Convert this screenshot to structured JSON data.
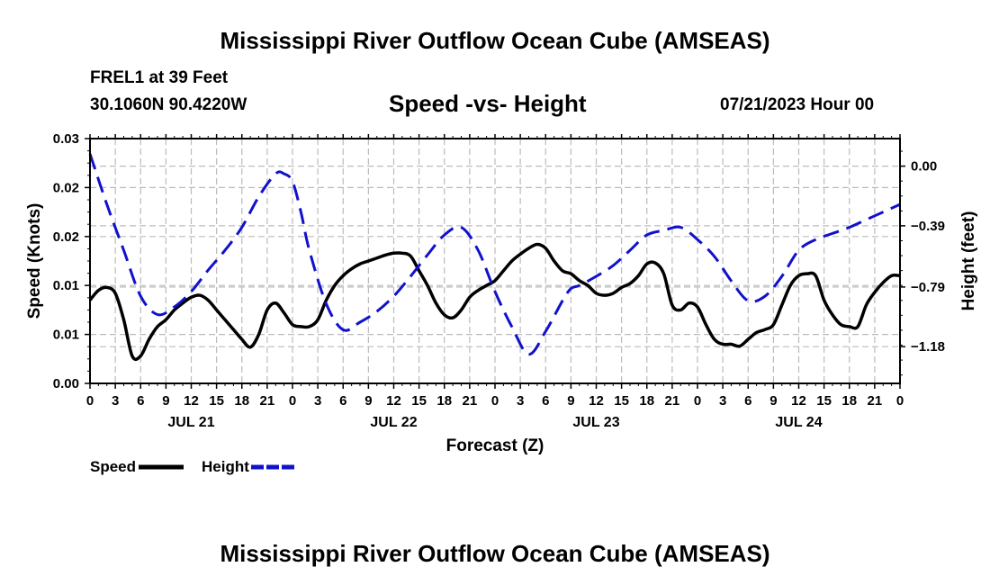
{
  "page": {
    "title_top": "Mississippi River Outflow Ocean Cube (AMSEAS)",
    "title_bottom": "Mississippi River Outflow Ocean Cube (AMSEAS)",
    "station": "FREL1 at 39 Feet",
    "coords": "30.1060N  90.4220W",
    "subtitle": "Speed -vs- Height",
    "run": "07/21/2023 Hour 00"
  },
  "legend": {
    "speed": "Speed",
    "height": "Height"
  },
  "colors": {
    "speed": "#000000",
    "height": "#1111cc",
    "grid": "#bbbbbb"
  },
  "chart_data": {
    "type": "line",
    "xlabel": "Forecast (Z)",
    "ylabel_left": "Speed (Knots)",
    "ylabel_right": "Height (feet)",
    "x_range_hours": [
      0,
      96
    ],
    "y_left_range": [
      0,
      0.025
    ],
    "y_left_ticks": [
      0,
      0.005,
      0.01,
      0.015,
      0.02,
      0.025
    ],
    "y_left_tick_labels": [
      "0.00",
      "0.01",
      "0.01",
      "0.02",
      "0.02",
      "0.03"
    ],
    "y_right_range": [
      -1.42,
      0.18
    ],
    "y_right_ticks": [
      0.0,
      -0.39,
      -0.79,
      -1.18
    ],
    "y_right_tick_labels": [
      "0.00",
      "−0.39",
      "−0.79",
      "−1.18"
    ],
    "x_tick_hours": [
      0,
      3,
      6,
      9,
      12,
      15,
      18,
      21,
      24,
      27,
      30,
      33,
      36,
      39,
      42,
      45,
      48,
      51,
      54,
      57,
      60,
      63,
      66,
      69,
      72,
      75,
      78,
      81,
      84,
      87,
      90,
      93,
      96
    ],
    "x_tick_labels": [
      "0",
      "3",
      "6",
      "9",
      "12",
      "15",
      "18",
      "21",
      "0",
      "3",
      "6",
      "9",
      "12",
      "15",
      "18",
      "21",
      "0",
      "3",
      "6",
      "9",
      "12",
      "15",
      "18",
      "21",
      "0",
      "3",
      "6",
      "9",
      "12",
      "15",
      "18",
      "21",
      "0"
    ],
    "day_labels": [
      {
        "hour": 12,
        "label": "JUL 21"
      },
      {
        "hour": 36,
        "label": "JUL 22"
      },
      {
        "hour": 60,
        "label": "JUL 23"
      },
      {
        "hour": 84,
        "label": "JUL 24"
      }
    ],
    "series": [
      {
        "name": "Speed",
        "axis": "left",
        "style": "solid",
        "x": [
          0,
          1,
          2,
          3,
          4,
          5,
          6,
          7,
          8,
          9,
          10,
          11,
          12,
          13,
          14,
          15,
          16,
          17,
          18,
          19,
          20,
          21,
          22,
          23,
          24,
          25,
          26,
          27,
          28,
          29,
          30,
          31,
          32,
          33,
          34,
          35,
          36,
          37,
          38,
          39,
          40,
          41,
          42,
          43,
          44,
          45,
          46,
          47,
          48,
          49,
          50,
          51,
          52,
          53,
          54,
          55,
          56,
          57,
          58,
          59,
          60,
          61,
          62,
          63,
          64,
          65,
          66,
          67,
          68,
          69,
          70,
          71,
          72,
          73,
          74,
          75,
          76,
          77,
          78,
          79,
          80,
          81,
          82,
          83,
          84,
          85,
          86,
          87,
          88,
          89,
          90,
          91,
          92,
          93,
          94,
          95,
          96
        ],
        "values": [
          0.0085,
          0.0095,
          0.0098,
          0.0092,
          0.0065,
          0.0028,
          0.0028,
          0.0045,
          0.0058,
          0.0065,
          0.0075,
          0.0082,
          0.0088,
          0.009,
          0.0085,
          0.0075,
          0.0065,
          0.0055,
          0.0045,
          0.0037,
          0.005,
          0.0075,
          0.0082,
          0.0072,
          0.006,
          0.0058,
          0.0058,
          0.0065,
          0.0085,
          0.01,
          0.011,
          0.0117,
          0.0122,
          0.0125,
          0.0128,
          0.0131,
          0.0133,
          0.0133,
          0.013,
          0.0115,
          0.01,
          0.0082,
          0.007,
          0.0067,
          0.0075,
          0.0088,
          0.0095,
          0.01,
          0.0105,
          0.0115,
          0.0125,
          0.0132,
          0.0138,
          0.0142,
          0.0138,
          0.0125,
          0.0115,
          0.0112,
          0.0105,
          0.01,
          0.0092,
          0.009,
          0.0092,
          0.0098,
          0.0102,
          0.011,
          0.0122,
          0.0123,
          0.0112,
          0.008,
          0.0075,
          0.0082,
          0.0078,
          0.006,
          0.0045,
          0.004,
          0.004,
          0.0038,
          0.0045,
          0.0052,
          0.0055,
          0.006,
          0.008,
          0.01,
          0.011,
          0.0112,
          0.011,
          0.0085,
          0.007,
          0.006,
          0.0058,
          0.0058,
          0.008,
          0.0093,
          0.0103,
          0.011,
          0.011
        ]
      },
      {
        "name": "Height",
        "axis": "right",
        "style": "dashed",
        "x": [
          0,
          2,
          4,
          6,
          8,
          10,
          12,
          14,
          16,
          18,
          20,
          22,
          23,
          24,
          25,
          26,
          28,
          30,
          32,
          34,
          36,
          38,
          40,
          42,
          44,
          46,
          48,
          50,
          52,
          54,
          56,
          57,
          58,
          60,
          62,
          64,
          66,
          68,
          70,
          72,
          74,
          76,
          78,
          80,
          82,
          84,
          86,
          88,
          90,
          92,
          94,
          96
        ],
        "values": [
          0.08,
          -0.25,
          -0.55,
          -0.85,
          -0.97,
          -0.92,
          -0.82,
          -0.68,
          -0.55,
          -0.4,
          -0.2,
          -0.05,
          -0.05,
          -0.1,
          -0.3,
          -0.55,
          -0.9,
          -1.07,
          -1.02,
          -0.95,
          -0.85,
          -0.72,
          -0.58,
          -0.45,
          -0.4,
          -0.55,
          -0.82,
          -1.05,
          -1.23,
          -1.08,
          -0.88,
          -0.8,
          -0.78,
          -0.72,
          -0.65,
          -0.55,
          -0.45,
          -0.42,
          -0.4,
          -0.48,
          -0.59,
          -0.75,
          -0.88,
          -0.85,
          -0.72,
          -0.55,
          -0.48,
          -0.44,
          -0.4,
          -0.35,
          -0.3,
          -0.25
        ]
      }
    ]
  }
}
